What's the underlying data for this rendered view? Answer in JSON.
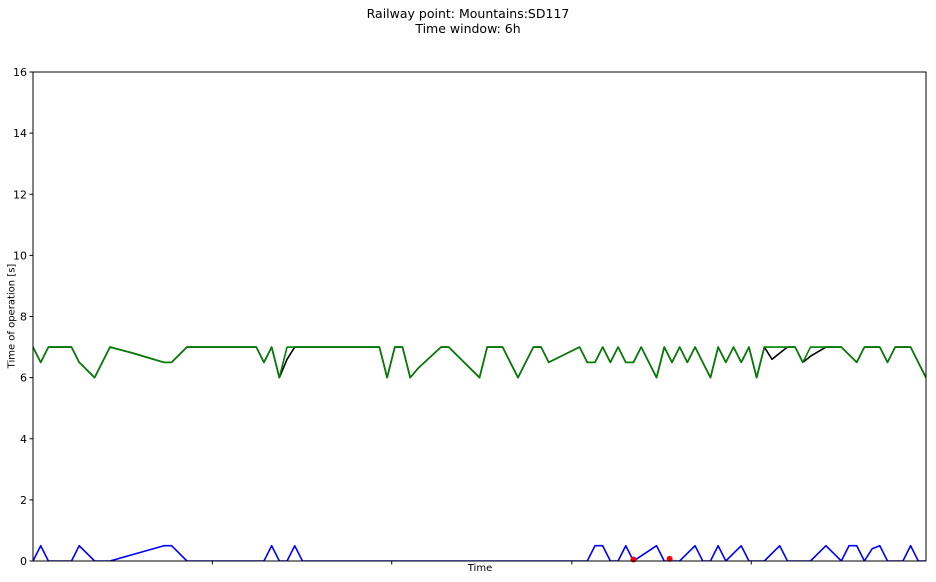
{
  "chart_data": {
    "type": "line",
    "title": "Railway point: Mountains:SD117",
    "subtitle": "Time window: 6h",
    "xlabel": "Time",
    "ylabel": "Time of operation [s]",
    "ylim": [
      0,
      16
    ],
    "yticks": [
      0,
      2,
      4,
      6,
      8,
      10,
      12,
      14,
      16
    ],
    "xlim": [
      0,
      116
    ],
    "xticks_unlabeled": [
      23.3,
      46.6,
      70,
      93.3
    ],
    "grid": false,
    "legend": "none",
    "series": [
      {
        "color": "#000000",
        "x": [
          0,
          1,
          2,
          5,
          6,
          8,
          10,
          13,
          17,
          18,
          20,
          29,
          30,
          31,
          32,
          33,
          34,
          35,
          36,
          45,
          46,
          47,
          48,
          49,
          50,
          53,
          54,
          58,
          59,
          60,
          61,
          62,
          63,
          65,
          66,
          67,
          71,
          72,
          73,
          74,
          75,
          76,
          77,
          78,
          79,
          81,
          82,
          83,
          84,
          85,
          86,
          88,
          89,
          90,
          91,
          92,
          93,
          94,
          95,
          96,
          98,
          99,
          100,
          101,
          103,
          105,
          107,
          108,
          110,
          111,
          112,
          113,
          114,
          115,
          116
        ],
        "y": [
          7,
          6.5,
          7,
          7,
          6.5,
          6,
          7,
          6.8,
          6.5,
          6.5,
          7,
          7,
          6.5,
          7,
          6,
          6.6,
          7,
          7,
          7,
          7,
          6,
          7,
          7,
          6,
          6.3,
          7,
          7,
          6,
          7,
          7,
          7,
          6.5,
          6,
          7,
          7,
          6.5,
          7,
          6.5,
          6.5,
          7,
          6.5,
          7,
          6.5,
          6.5,
          7,
          6,
          7,
          6.5,
          7,
          6.5,
          7,
          6,
          7,
          6.5,
          7,
          6.5,
          7,
          6,
          7,
          6.6,
          7,
          7,
          6.5,
          6.7,
          7,
          7,
          6.5,
          7,
          7,
          6.5,
          7,
          7,
          7,
          6.5,
          6
        ]
      },
      {
        "color": "#008000",
        "x": [
          0,
          1,
          2,
          5,
          6,
          8,
          10,
          13,
          17,
          18,
          20,
          29,
          30,
          31,
          32,
          33,
          34,
          35,
          36,
          45,
          46,
          47,
          48,
          49,
          50,
          53,
          54,
          58,
          59,
          60,
          61,
          62,
          63,
          65,
          66,
          67,
          71,
          72,
          73,
          74,
          75,
          76,
          77,
          78,
          79,
          81,
          82,
          83,
          84,
          85,
          86,
          88,
          89,
          90,
          91,
          92,
          93,
          94,
          95,
          96,
          98,
          99,
          100,
          101,
          103,
          105,
          107,
          108,
          110,
          111,
          112,
          113,
          114,
          115,
          116
        ],
        "y": [
          7,
          6.5,
          7,
          7,
          6.5,
          6,
          7,
          6.8,
          6.5,
          6.5,
          7,
          7,
          6.5,
          7,
          6,
          7,
          7,
          7,
          7,
          7,
          6,
          7,
          7,
          6,
          6.3,
          7,
          7,
          6,
          7,
          7,
          7,
          6.5,
          6,
          7,
          7,
          6.5,
          7,
          6.5,
          6.5,
          7,
          6.5,
          7,
          6.5,
          6.5,
          7,
          6,
          7,
          6.5,
          7,
          6.5,
          7,
          6,
          7,
          6.5,
          7,
          6.5,
          7,
          6,
          7,
          7,
          7,
          7,
          6.5,
          7,
          7,
          7,
          6.5,
          7,
          7,
          6.5,
          7,
          7,
          7,
          6.5,
          6
        ]
      },
      {
        "color": "#0000ff",
        "x": [
          0,
          1,
          2,
          5,
          6,
          8,
          10,
          17,
          18,
          20,
          29,
          30,
          31,
          32,
          33,
          34,
          35,
          36,
          45,
          72,
          73,
          74,
          75,
          76,
          77,
          78,
          81,
          82,
          83,
          84,
          86,
          87,
          88,
          89,
          90,
          92,
          93,
          94,
          95,
          97,
          98,
          101,
          103,
          105,
          106,
          107,
          108,
          109,
          110,
          111,
          112,
          113,
          114,
          115,
          116
        ],
        "y": [
          0,
          0.5,
          0,
          0,
          0.5,
          0,
          0,
          0.5,
          0.5,
          0,
          0,
          0,
          0.5,
          0,
          0,
          0.5,
          0,
          0,
          0,
          0,
          0.5,
          0.5,
          0,
          0,
          0.5,
          0,
          0.5,
          0,
          0,
          0,
          0.5,
          0,
          0,
          0.5,
          0,
          0.5,
          0,
          0,
          0,
          0.5,
          0,
          0,
          0.5,
          0,
          0.5,
          0.5,
          0,
          0.4,
          0.5,
          0,
          0,
          0,
          0.5,
          0,
          0
        ]
      }
    ],
    "markers": {
      "color": "#ff0000",
      "points": [
        {
          "x": 78,
          "y": 0.05
        },
        {
          "x": 82.7,
          "y": 0.07
        }
      ]
    }
  }
}
